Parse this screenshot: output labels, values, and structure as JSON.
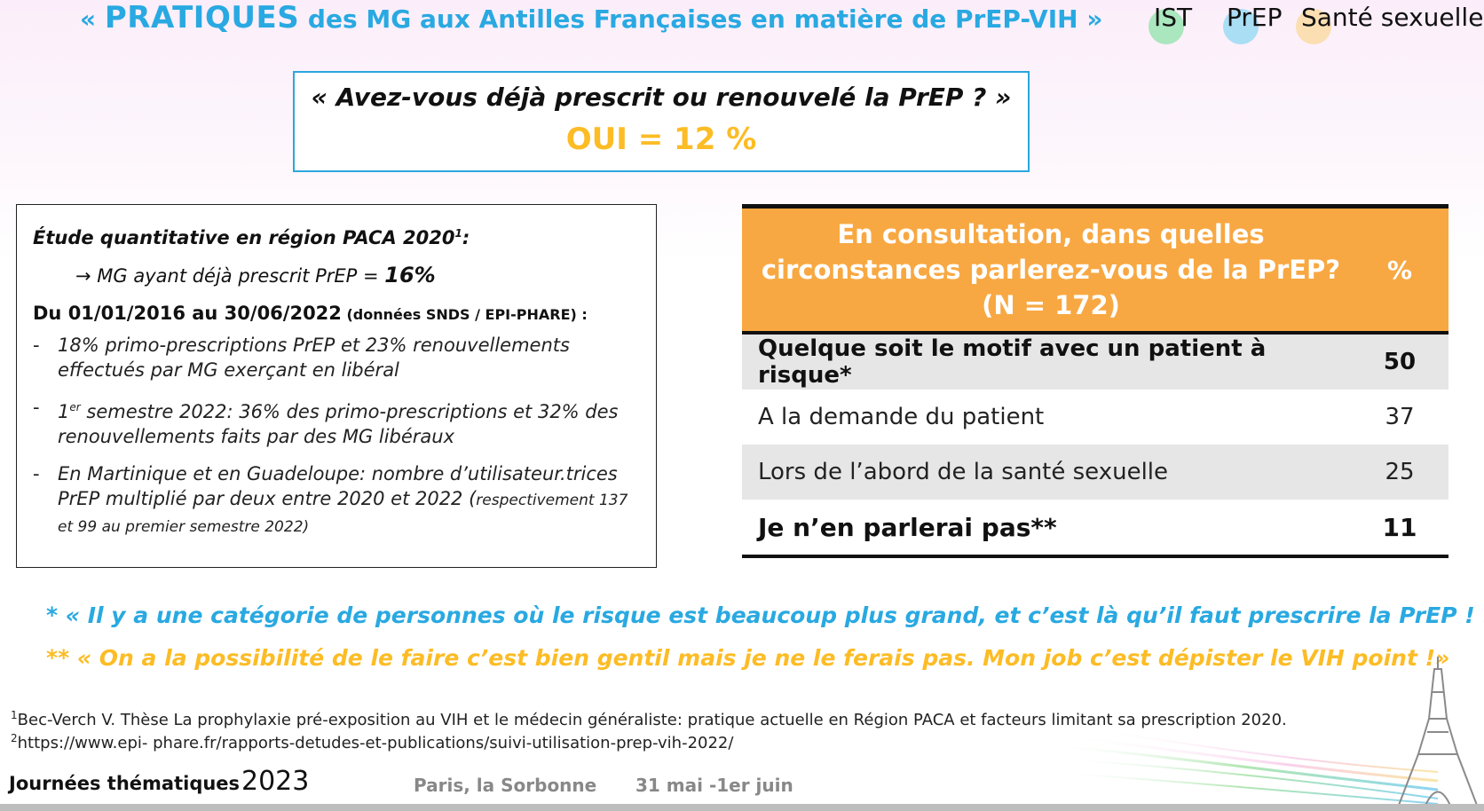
{
  "header": {
    "title_open": "« ",
    "title_big": "PRATIQUES",
    "title_rest": " des MG aux Antilles Françaises en matière de PrEP-VIH »",
    "tags": [
      "IST",
      "PrEP",
      "Santé sexuelle"
    ],
    "tag_colors": [
      "#8fe3a9",
      "#8fd8f2",
      "#fbd99a"
    ]
  },
  "question": {
    "text": "« Avez-vous déjà prescrit ou renouvelé la PrEP ? »",
    "answer": "OUI  = 12 %"
  },
  "study": {
    "heading": "Étude quantitative en région PACA 2020",
    "heading_sup": "1",
    "heading_colon": ":",
    "arrow_text": "→ MG ayant déjà prescrit PrEP = ",
    "arrow_value": "16%",
    "period_heading": "Du 01/01/2016 au 30/06/2022",
    "period_source": " (données SNDS  / EPI-PHARE) :",
    "bullet_dash": "-",
    "bullet_1": "18% primo-prescriptions PrEP et 23% renouvellements effectués par MG exerçant en libéral",
    "bullet_2_pre": "1",
    "bullet_2_sup": "er",
    "bullet_2_rest": " semestre 2022: 36% des primo-prescriptions et 32% des renouvellements faits par des MG libéraux",
    "bullet_3_main": "En Martinique et en Guadeloupe:  nombre d’utilisateur.trices PrEP multiplié par deux entre 2020 et 2022 (",
    "bullet_3_small": "respectivement 137 et 99 au premier semestre 2022)"
  },
  "table": {
    "header_question_1": "En consultation, dans quelles",
    "header_question_2": "circonstances parlerez-vous de la PrEP?",
    "header_question_3": "(N = 172)",
    "header_pct": "%",
    "rows": [
      {
        "label": "Quelque soit le motif avec un patient à risque*",
        "value": "50"
      },
      {
        "label": "A la demande du patient",
        "value": "37"
      },
      {
        "label": "Lors de l’abord de la santé sexuelle",
        "value": "25"
      },
      {
        "label": "Je n’en parlerai pas**",
        "value": "11"
      }
    ]
  },
  "quotes": {
    "q1": "* « Il y a une catégorie de personnes où le risque est beaucoup plus grand, et c’est là qu’il faut prescrire la PrEP ! »",
    "q2": "** « On a la possibilité de le faire c’est bien gentil mais je ne le ferais pas. Mon job c’est dépister le VIH point !»"
  },
  "footnotes": {
    "fn1_num": "1",
    "fn1_text": "Bec-Verch V. Thèse La prophylaxie pré-exposition au VIH et le médecin généraliste: pratique actuelle en Région PACA et facteurs limitant sa prescription 2020.",
    "fn2_num": "2",
    "fn2_text": "https://www.epi- phare.fr/rapports-detudes-et-publications/suivi-utilisation-prep-vih-2022/"
  },
  "footer": {
    "event": "Journées thématiques",
    "year": "2023",
    "place": "Paris, la Sorbonne",
    "date": "31 mai -1er juin"
  }
}
